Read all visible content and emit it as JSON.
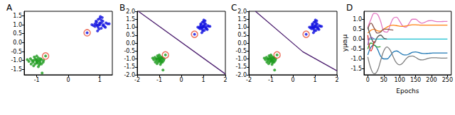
{
  "chart_data": [
    {
      "type": "scatter",
      "title": "A",
      "grid": false,
      "xlim": [
        -1.4,
        1.4
      ],
      "xticks": [
        -1,
        0,
        1
      ],
      "ylim": [
        -1.8,
        1.75
      ],
      "yticks": [
        {
          "value": -1.5,
          "label": "-1.5"
        },
        {
          "value": -1,
          "label": "-1.0"
        },
        {
          "value": -0.5,
          "label": "-0.5"
        },
        {
          "value": 0,
          "label": "0.0"
        },
        {
          "value": 0.5,
          "label": "0.5"
        },
        {
          "value": 1,
          "label": "1.0"
        },
        {
          "value": 1.5,
          "label": "1.5"
        }
      ],
      "series": [
        {
          "color": "#1a9a1a",
          "marker": "dot",
          "x": [
            -1.1,
            -0.95,
            -1.0,
            -0.85,
            -1.2,
            -1.05,
            -0.9,
            -1.15,
            -0.8,
            -1.0,
            -0.92,
            -1.08,
            -1.25,
            -0.98,
            -0.88,
            -1.12,
            -1.02,
            -0.78,
            -1.18,
            -0.95,
            -1.05,
            -0.9,
            -1.3,
            -1.0,
            -0.85,
            -1.1,
            -0.97,
            -0.72,
            -0.83,
            -0.93
          ],
          "values": [
            -1.0,
            -0.85,
            -1.1,
            -0.95,
            -0.9,
            -1.2,
            -1.05,
            -1.0,
            -1.1,
            -0.95,
            -1.25,
            -0.8,
            -1.05,
            -1.15,
            -0.9,
            -1.1,
            -1.0,
            -1.0,
            -1.2,
            -1.35,
            -0.9,
            -1.15,
            -0.95,
            -0.75,
            -1.2,
            -1.3,
            -1.05,
            -0.75,
            -1.7,
            -0.98
          ]
        },
        {
          "color": "#1010e0",
          "marker": "dot",
          "x": [
            1.0,
            0.9,
            1.1,
            0.85,
            1.05,
            1.2,
            0.95,
            1.0,
            0.8,
            1.15,
            0.9,
            1.05,
            1.25,
            0.98,
            0.88,
            1.12,
            1.02,
            0.75,
            1.18,
            0.95,
            1.05,
            0.92,
            1.3,
            1.0,
            0.85,
            1.1,
            0.97,
            0.6,
            1.08,
            0.93
          ],
          "values": [
            1.0,
            1.15,
            0.95,
            1.05,
            1.25,
            1.1,
            0.85,
            1.35,
            0.95,
            0.9,
            1.0,
            1.1,
            1.05,
            0.75,
            1.2,
            1.0,
            1.45,
            1.0,
            0.85,
            1.3,
            0.8,
            0.95,
            1.05,
            1.1,
            0.9,
            1.2,
            1.0,
            0.55,
            1.4,
            0.65
          ]
        },
        {
          "color": "#e8503a",
          "marker": "ring",
          "x": [
            -0.72,
            0.6
          ],
          "values": [
            -0.75,
            0.55
          ]
        }
      ]
    },
    {
      "type": "scatter",
      "title": "B",
      "grid": false,
      "xlim": [
        -2,
        2
      ],
      "xticks": [
        -2,
        -1,
        0,
        1,
        2
      ],
      "ylim": [
        -2,
        2
      ],
      "yticks": [
        {
          "value": -2,
          "label": "-2.0"
        },
        {
          "value": -1.5,
          "label": "-1.5"
        },
        {
          "value": -1,
          "label": "-1.0"
        },
        {
          "value": -0.5,
          "label": "-0.5"
        },
        {
          "value": 0,
          "label": "0.0"
        },
        {
          "value": 0.5,
          "label": "0.5"
        },
        {
          "value": 1,
          "label": "1.0"
        },
        {
          "value": 1.5,
          "label": "1.5"
        },
        {
          "value": 2,
          "label": "2.0"
        }
      ],
      "series": [
        {
          "color": "#1a9a1a",
          "marker": "dot",
          "x": [
            -1.1,
            -0.95,
            -1.0,
            -0.85,
            -1.2,
            -1.05,
            -0.9,
            -1.15,
            -0.8,
            -1.0,
            -0.92,
            -1.08,
            -1.25,
            -0.98,
            -0.88,
            -1.12,
            -1.02,
            -0.78,
            -1.18,
            -0.95,
            -1.05,
            -0.9,
            -1.3,
            -1.0,
            -0.85,
            -1.1,
            -0.97,
            -0.72,
            -0.83,
            -0.93
          ],
          "values": [
            -1.0,
            -0.85,
            -1.1,
            -0.95,
            -0.9,
            -1.2,
            -1.05,
            -1.0,
            -1.1,
            -0.95,
            -1.25,
            -0.8,
            -1.05,
            -1.15,
            -0.9,
            -1.1,
            -1.0,
            -1.0,
            -1.2,
            -1.35,
            -0.9,
            -1.15,
            -0.95,
            -0.75,
            -1.2,
            -1.3,
            -1.05,
            -0.75,
            -1.7,
            -0.98
          ]
        },
        {
          "color": "#1010e0",
          "marker": "dot",
          "x": [
            1.0,
            0.9,
            1.1,
            0.85,
            1.05,
            1.2,
            0.95,
            1.0,
            0.8,
            1.15,
            0.9,
            1.05,
            1.25,
            0.98,
            0.88,
            1.12,
            1.02,
            0.75,
            1.18,
            0.95,
            1.05,
            0.92,
            1.3,
            1.0,
            0.85,
            1.1,
            0.97,
            0.6,
            1.08,
            0.93
          ],
          "values": [
            1.0,
            1.15,
            0.95,
            1.05,
            1.25,
            1.1,
            0.85,
            1.35,
            0.95,
            0.9,
            1.0,
            1.1,
            1.05,
            0.75,
            1.2,
            1.0,
            1.45,
            1.0,
            0.85,
            1.3,
            0.8,
            0.95,
            1.05,
            1.1,
            0.9,
            1.2,
            1.0,
            0.55,
            1.4,
            0.65
          ]
        },
        {
          "color": "#e8503a",
          "marker": "ring",
          "x": [
            -0.72,
            0.6
          ],
          "values": [
            -0.75,
            0.55
          ]
        },
        {
          "type": "line",
          "color": "#4b1d6e",
          "line_style": "solid",
          "x": [
            -1.95,
            2
          ],
          "values": [
            2,
            -1.95
          ]
        }
      ]
    },
    {
      "type": "scatter",
      "title": "C",
      "grid": false,
      "xlim": [
        -2,
        2
      ],
      "xticks": [
        -2,
        -1,
        0,
        1,
        2
      ],
      "ylim": [
        -2,
        2
      ],
      "yticks": [
        {
          "value": -2,
          "label": "-2.0"
        },
        {
          "value": -1.5,
          "label": "-1.5"
        },
        {
          "value": -1,
          "label": "-1.0"
        },
        {
          "value": -0.5,
          "label": "-0.5"
        },
        {
          "value": 0,
          "label": "0.0"
        },
        {
          "value": 0.5,
          "label": "0.5"
        },
        {
          "value": 1,
          "label": "1.0"
        },
        {
          "value": 1.5,
          "label": "1.5"
        },
        {
          "value": 2,
          "label": "2.0"
        }
      ],
      "series": [
        {
          "color": "#1a9a1a",
          "marker": "dot",
          "x": [
            -1.1,
            -0.95,
            -1.0,
            -0.85,
            -1.2,
            -1.05,
            -0.9,
            -1.15,
            -0.8,
            -1.0,
            -0.92,
            -1.08,
            -1.25,
            -0.98,
            -0.88,
            -1.12,
            -1.02,
            -0.78,
            -1.18,
            -0.95,
            -1.05,
            -0.9,
            -1.3,
            -1.0,
            -0.85,
            -1.1,
            -0.97,
            -0.72,
            -0.83,
            -0.93
          ],
          "values": [
            -1.0,
            -0.85,
            -1.1,
            -0.95,
            -0.9,
            -1.2,
            -1.05,
            -1.0,
            -1.1,
            -0.95,
            -1.25,
            -0.8,
            -1.05,
            -1.15,
            -0.9,
            -1.1,
            -1.0,
            -1.0,
            -1.2,
            -1.35,
            -0.9,
            -1.15,
            -0.95,
            -0.75,
            -1.2,
            -1.3,
            -1.05,
            -0.75,
            -1.7,
            -0.98
          ]
        },
        {
          "color": "#1010e0",
          "marker": "dot",
          "x": [
            1.0,
            0.9,
            1.1,
            0.85,
            1.05,
            1.2,
            0.95,
            1.0,
            0.8,
            1.15,
            0.9,
            1.05,
            1.25,
            0.98,
            0.88,
            1.12,
            1.02,
            0.75,
            1.18,
            0.95,
            1.05,
            0.92,
            1.3,
            1.0,
            0.85,
            1.1,
            0.97,
            0.6,
            1.08,
            0.93
          ],
          "values": [
            1.0,
            1.15,
            0.95,
            1.05,
            1.25,
            1.1,
            0.85,
            1.35,
            0.95,
            0.9,
            1.0,
            1.1,
            1.05,
            0.75,
            1.2,
            1.0,
            1.45,
            1.0,
            0.85,
            1.3,
            0.8,
            0.95,
            1.05,
            1.1,
            0.9,
            1.2,
            1.0,
            0.55,
            1.4,
            0.65
          ]
        },
        {
          "color": "#e8503a",
          "marker": "ring",
          "x": [
            -0.72,
            0.6
          ],
          "values": [
            -0.75,
            0.55
          ]
        },
        {
          "type": "line",
          "color": "#4b1d6e",
          "line_style": "solid",
          "x": [
            -1.7,
            0.45,
            2
          ],
          "values": [
            2,
            -0.55,
            -1.75
          ]
        }
      ]
    },
    {
      "type": "line",
      "title": "D",
      "grid": false,
      "x_label": "Epochs",
      "y_label": "yμαᵢμ",
      "xlim": [
        -12,
        262
      ],
      "xticks": [
        0,
        50,
        100,
        150,
        200,
        250
      ],
      "ylim": [
        -1.8,
        1.4
      ],
      "yticks": [
        {
          "value": -1.5,
          "label": "-1.5"
        },
        {
          "value": -1,
          "label": "-1.0"
        },
        {
          "value": -0.5,
          "label": "-0.5"
        },
        {
          "value": 0,
          "label": "0.0"
        },
        {
          "value": 0.5,
          "label": "0.5"
        },
        {
          "value": 1,
          "label": "1.0"
        }
      ],
      "x": [
        0,
        10,
        20,
        30,
        40,
        50,
        60,
        70,
        80,
        90,
        100,
        110,
        120,
        130,
        140,
        150,
        160,
        170,
        180,
        190,
        200,
        210,
        220,
        230,
        240,
        250
      ],
      "series": [
        {
          "color": "#e377c2",
          "line_style": "solid",
          "values": [
            0.6,
            1.0,
            1.3,
            1.25,
            0.9,
            0.4,
            0.35,
            0.7,
            1.05,
            1.1,
            0.9,
            0.65,
            0.6,
            0.8,
            1.0,
            1.0,
            0.88,
            0.8,
            0.85,
            0.92,
            0.93,
            0.9,
            0.88,
            0.88,
            0.89,
            0.89
          ]
        },
        {
          "color": "#ff7f0e",
          "line_style": "solid",
          "values": [
            0.3,
            0.45,
            0.5,
            0.42,
            0.4,
            0.5,
            0.6,
            0.68,
            0.7,
            0.68,
            0.65,
            0.64,
            0.66,
            0.7,
            0.72,
            0.72,
            0.71,
            0.7,
            0.7,
            0.7,
            0.7,
            0.7,
            0.7,
            0.7,
            0.7,
            0.7
          ]
        },
        {
          "color": "#17becf",
          "line_style": "solid",
          "values": [
            0,
            0,
            0,
            0,
            0,
            0,
            0,
            0,
            0,
            0,
            0,
            0,
            0,
            0,
            0,
            0,
            0,
            0,
            0,
            0,
            0,
            0,
            0,
            0,
            0,
            0
          ]
        },
        {
          "color": "#1f77b4",
          "line_style": "solid",
          "values": [
            -0.8,
            -0.4,
            -0.3,
            -0.5,
            -0.85,
            -1.0,
            -1.0,
            -0.85,
            -0.65,
            -0.6,
            -0.68,
            -0.78,
            -0.8,
            -0.75,
            -0.67,
            -0.65,
            -0.68,
            -0.72,
            -0.73,
            -0.72,
            -0.71,
            -0.7,
            -0.7,
            -0.7,
            -0.7,
            -0.7
          ]
        },
        {
          "color": "#7f7f7f",
          "line_style": "solid",
          "values": [
            -0.9,
            -1.5,
            -1.75,
            -1.6,
            -1.1,
            -0.6,
            -0.4,
            -0.55,
            -0.9,
            -1.2,
            -1.3,
            -1.2,
            -1.0,
            -0.87,
            -0.85,
            -0.92,
            -1.02,
            -1.05,
            -1.02,
            -0.97,
            -0.94,
            -0.94,
            -0.95,
            -0.96,
            -0.96,
            -0.95
          ]
        },
        {
          "color": "#8c564b",
          "line_style": "solid",
          "values": [
            0.5,
            0.8,
            0.55,
            0.3,
            0.35,
            0.5,
            0.5,
            0.47,
            0.45,
            null,
            null,
            null,
            null,
            null,
            null,
            null,
            null,
            null,
            null,
            null,
            null,
            null,
            null,
            null,
            null,
            null
          ]
        },
        {
          "color": "#555555",
          "line_style": "solid",
          "values": [
            0.6,
            0.1,
            -0.2,
            0.1,
            0.2,
            0.05,
            0.0,
            null,
            null,
            null,
            null,
            null,
            null,
            null,
            null,
            null,
            null,
            null,
            null,
            null,
            null,
            null,
            null,
            null,
            null,
            null
          ]
        },
        {
          "color": "#2ca02c",
          "line_style": "solid",
          "values": [
            -0.5,
            -0.2,
            -0.3,
            -0.4,
            -0.38,
            null,
            null,
            null,
            null,
            null,
            null,
            null,
            null,
            null,
            null,
            null,
            null,
            null,
            null,
            null,
            null,
            null,
            null,
            null,
            null,
            null
          ]
        },
        {
          "color": "#d62728",
          "line_style": "solid",
          "values": [
            0.2,
            -0.6,
            -0.1,
            null,
            null,
            null,
            null,
            null,
            null,
            null,
            null,
            null,
            null,
            null,
            null,
            null,
            null,
            null,
            null,
            null,
            null,
            null,
            null,
            null,
            null,
            null
          ]
        },
        {
          "color": "#9467bd",
          "line_style": "solid",
          "values": [
            -0.3,
            0.1,
            0.0,
            null,
            null,
            null,
            null,
            null,
            null,
            null,
            null,
            null,
            null,
            null,
            null,
            null,
            null,
            null,
            null,
            null,
            null,
            null,
            null,
            null,
            null,
            null
          ]
        }
      ]
    }
  ]
}
